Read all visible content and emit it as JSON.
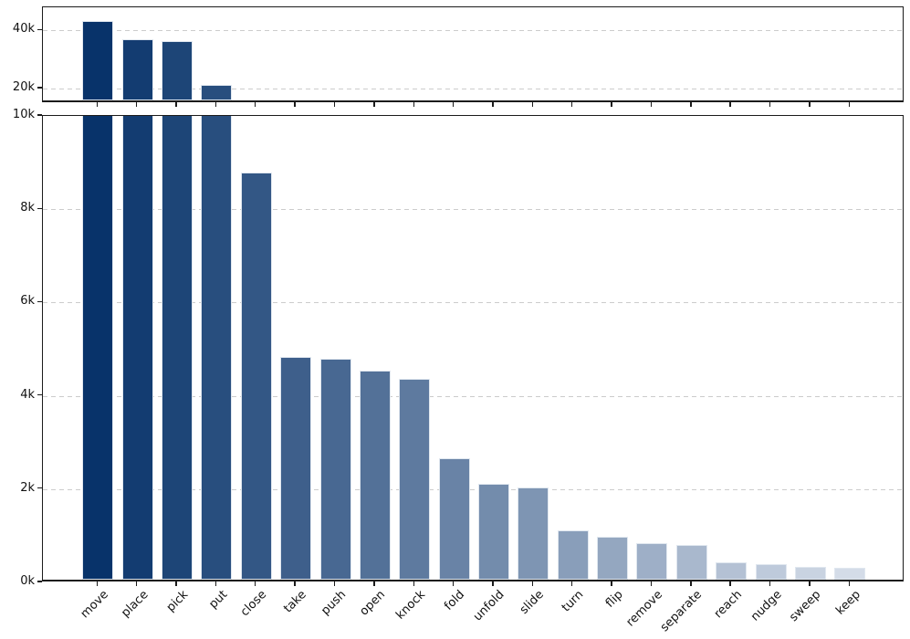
{
  "figure": {
    "background_color": "#ffffff",
    "title": "",
    "xlabel": "",
    "ylabel": ""
  },
  "axis_style": {
    "spine_color": "#1b1b1b",
    "tick_color": "#1b1b1b",
    "grid_color": "#cccccc",
    "grid_style": "dashed",
    "bar_edge_color": "#e0e7ef",
    "label_color": "#111111"
  },
  "chart_data": {
    "type": "bar",
    "orientation": "vertical",
    "broken_axis": true,
    "grid": "horizontal dashed",
    "legend": "none",
    "categories": [
      "move",
      "place",
      "pick",
      "put",
      "close",
      "take",
      "push",
      "open",
      "knock",
      "fold",
      "unfold",
      "slide",
      "turn",
      "flip",
      "remove",
      "separate",
      "reach",
      "nudge",
      "sweep",
      "keep"
    ],
    "values": [
      42500,
      36200,
      35400,
      20300,
      8720,
      4770,
      4730,
      4480,
      4310,
      2610,
      2060,
      1980,
      1050,
      920,
      790,
      740,
      370,
      330,
      270,
      250
    ],
    "bar_colors": [
      "#08336a",
      "#133c71",
      "#1d4577",
      "#284e7e",
      "#335785",
      "#3e5f8b",
      "#486892",
      "#537198",
      "#5e7a9f",
      "#6983a6",
      "#738cac",
      "#7e95b3",
      "#899eba",
      "#94a7c0",
      "#9eafc7",
      "#a9b8cd",
      "#b4c1d4",
      "#becadb",
      "#c9d3e1",
      "#d4dce8"
    ],
    "panels": [
      {
        "name": "upper",
        "ylim": [
          15000,
          48000
        ],
        "yticks": [
          {
            "value": 40000,
            "label": "40k"
          },
          {
            "value": 20000,
            "label": "20k"
          }
        ],
        "gridlines": [
          40000,
          20000
        ],
        "show_x_labels": false
      },
      {
        "name": "lower",
        "ylim": [
          0,
          10000
        ],
        "yticks": [
          {
            "value": 10000,
            "label": "10k"
          },
          {
            "value": 8000,
            "label": "8k"
          },
          {
            "value": 6000,
            "label": "6k"
          },
          {
            "value": 4000,
            "label": "4k"
          },
          {
            "value": 2000,
            "label": "2k"
          },
          {
            "value": 0,
            "label": "0k"
          }
        ],
        "gridlines": [
          8000,
          6000,
          4000,
          2000
        ],
        "show_x_labels": true
      }
    ]
  }
}
